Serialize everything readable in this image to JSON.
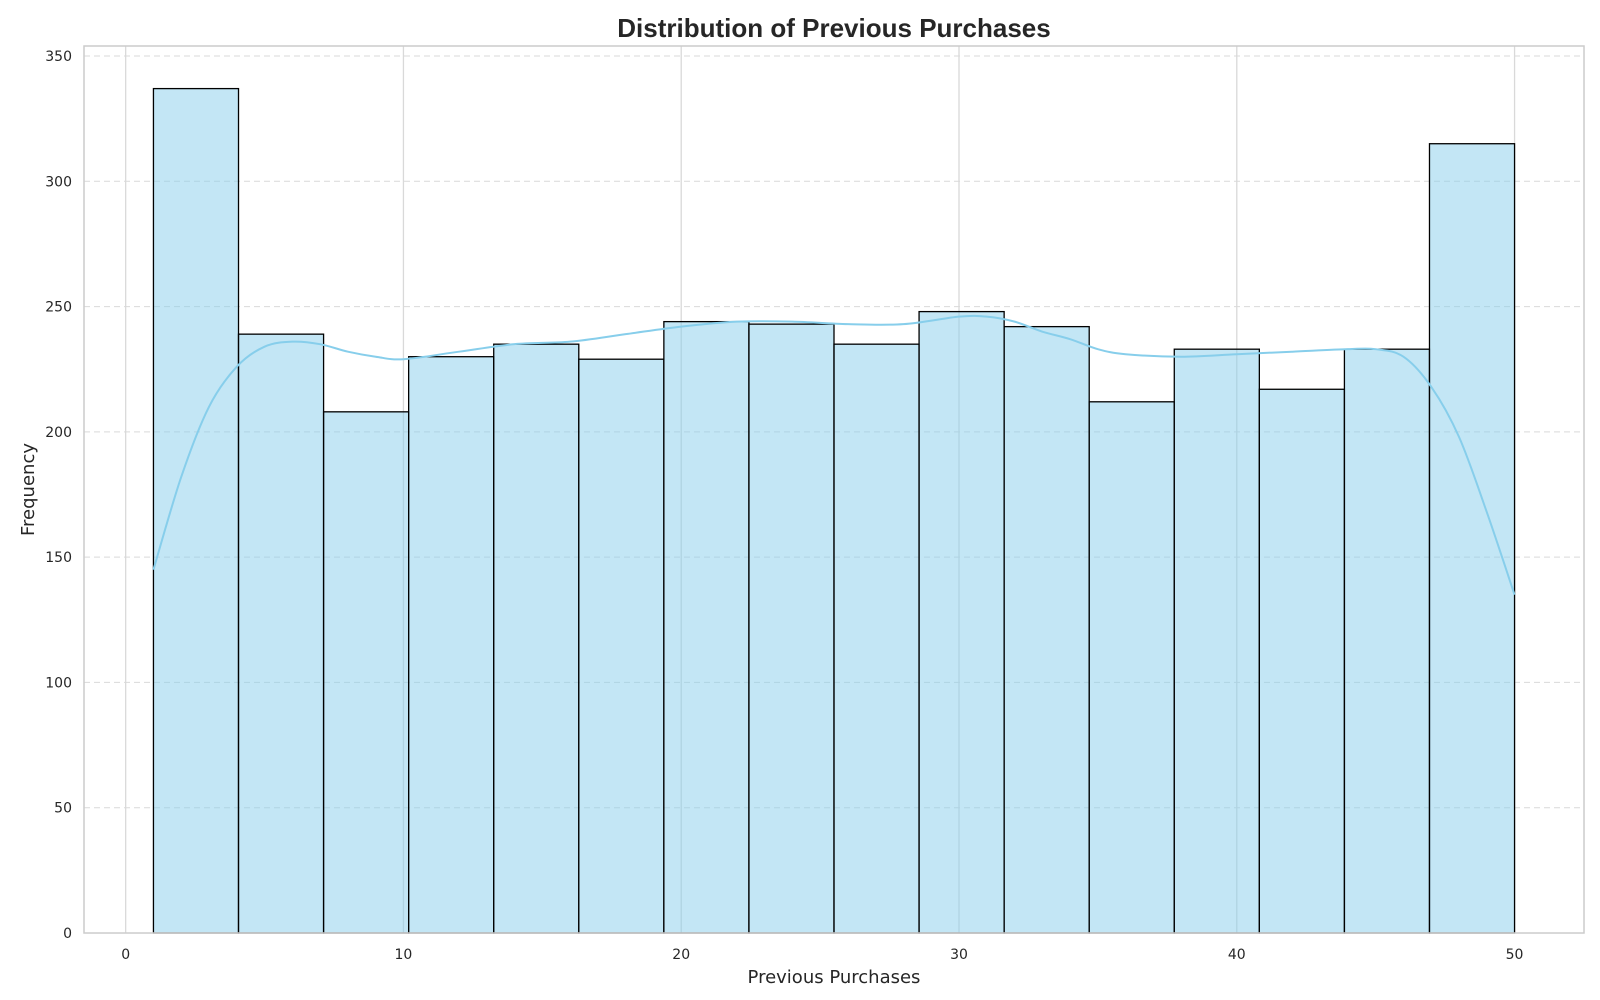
{
  "chart_data": {
    "type": "bar",
    "title": "Distribution of Previous Purchases",
    "xlabel": "Previous Purchases",
    "ylabel": "Frequency",
    "xlim": [
      -1.5,
      52.5
    ],
    "ylim": [
      0,
      354
    ],
    "x_ticks": [
      0,
      10,
      20,
      30,
      40,
      50
    ],
    "y_ticks": [
      0,
      50,
      100,
      150,
      200,
      250,
      300,
      350
    ],
    "bin_edges": [
      1,
      4.0625,
      7.125,
      10.1875,
      13.25,
      16.3125,
      19.375,
      22.4375,
      25.5,
      28.5625,
      31.625,
      34.6875,
      37.75,
      40.8125,
      43.875,
      46.9375,
      50
    ],
    "values": [
      337,
      239,
      208,
      230,
      235,
      229,
      244,
      243,
      235,
      248,
      242,
      212,
      233,
      217,
      233,
      315
    ],
    "kde": {
      "x": [
        1,
        2,
        3,
        4,
        5,
        6,
        7,
        8,
        9,
        10,
        12,
        14,
        16,
        18,
        20,
        22,
        24,
        26,
        28,
        30,
        31,
        32,
        33,
        34,
        35,
        36,
        38,
        40,
        42,
        44,
        45,
        46,
        47,
        48,
        49,
        50
      ],
      "y": [
        145,
        182,
        210,
        226,
        234,
        236,
        235,
        232,
        230,
        229,
        232,
        235,
        236,
        239,
        242,
        244,
        244,
        243,
        243,
        246,
        246,
        244,
        240,
        237,
        233,
        231,
        230,
        231,
        232,
        233,
        233,
        230,
        218,
        198,
        168,
        135
      ]
    },
    "grid": true,
    "legend": "none",
    "colors": {
      "bar_fill": "#87CEEB",
      "bar_fill_opacity": 0.5,
      "bar_edge": "#000000",
      "kde_line": "#87CEEB",
      "grid": "#d9d9d9",
      "axes_edge": "#cccccc",
      "text": "#262626"
    }
  }
}
